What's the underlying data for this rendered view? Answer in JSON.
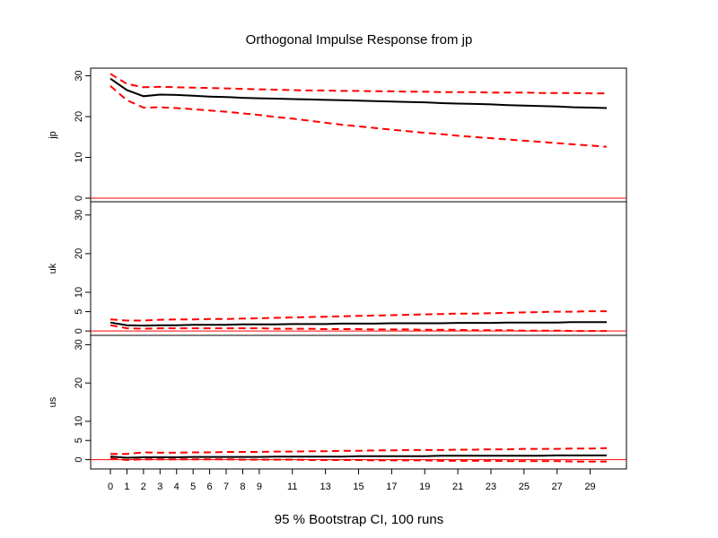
{
  "title": "Orthogonal Impulse Response from jp",
  "footer": "95 % Bootstrap CI,  100 runs",
  "chart_data": {
    "type": "line",
    "title": "Orthogonal Impulse Response from jp",
    "caption": "95 % Bootstrap CI,  100 runs",
    "x": [
      0,
      1,
      2,
      3,
      4,
      5,
      6,
      7,
      8,
      9,
      10,
      11,
      12,
      13,
      14,
      15,
      16,
      17,
      18,
      19,
      20,
      21,
      22,
      23,
      24,
      25,
      26,
      27,
      28,
      29,
      30
    ],
    "xticks": [
      0,
      1,
      2,
      3,
      4,
      5,
      6,
      7,
      8,
      9,
      11,
      13,
      15,
      17,
      19,
      21,
      23,
      25,
      27,
      29
    ],
    "xtick_labels": [
      "0",
      "1",
      "2",
      "3",
      "4",
      "5",
      "6",
      "7",
      "8",
      "9",
      "11",
      "13",
      "15",
      "17",
      "19",
      "21",
      "23",
      "25",
      "27",
      "29"
    ],
    "xlim": [
      0,
      30
    ],
    "colors": {
      "irf": "#000000",
      "ci": "#ff0000",
      "zero_line": "#ff0000"
    },
    "panels": [
      {
        "name": "jp",
        "ylim": [
          0,
          31
        ],
        "yticks": [
          0,
          10,
          20,
          30
        ],
        "ytick_labels": [
          "0",
          "10",
          "20",
          "30"
        ],
        "series": [
          {
            "role": "irf",
            "values": [
              29.3,
              26.5,
              25.0,
              25.4,
              25.3,
              25.1,
              24.9,
              24.8,
              24.6,
              24.5,
              24.4,
              24.3,
              24.2,
              24.1,
              24.0,
              23.9,
              23.8,
              23.7,
              23.6,
              23.5,
              23.3,
              23.2,
              23.1,
              23.0,
              22.8,
              22.7,
              22.6,
              22.5,
              22.3,
              22.2,
              22.1
            ]
          },
          {
            "role": "upper",
            "values": [
              30.5,
              28.0,
              27.2,
              27.3,
              27.2,
              27.1,
              27.0,
              26.9,
              26.8,
              26.7,
              26.6,
              26.5,
              26.4,
              26.4,
              26.3,
              26.3,
              26.2,
              26.2,
              26.1,
              26.1,
              26.0,
              26.0,
              26.0,
              25.9,
              25.9,
              25.9,
              25.8,
              25.8,
              25.8,
              25.7,
              25.7
            ]
          },
          {
            "role": "lower",
            "values": [
              27.5,
              24.0,
              22.2,
              22.3,
              22.1,
              21.8,
              21.5,
              21.2,
              20.8,
              20.4,
              19.9,
              19.5,
              19.0,
              18.5,
              18.0,
              17.6,
              17.2,
              16.8,
              16.4,
              16.0,
              15.7,
              15.3,
              15.0,
              14.7,
              14.4,
              14.1,
              13.8,
              13.5,
              13.2,
              12.9,
              12.6
            ]
          }
        ]
      },
      {
        "name": "uk",
        "ylim": [
          -0.2,
          32.5
        ],
        "yticks": [
          0,
          5,
          10,
          20,
          30
        ],
        "ytick_labels": [
          "0",
          "5",
          "10",
          "20",
          "30"
        ],
        "series": [
          {
            "role": "irf",
            "values": [
              2.2,
              1.5,
              1.4,
              1.5,
              1.5,
              1.6,
              1.6,
              1.6,
              1.7,
              1.7,
              1.7,
              1.8,
              1.8,
              1.8,
              1.9,
              1.9,
              1.9,
              2.0,
              2.0,
              2.0,
              2.0,
              2.1,
              2.1,
              2.1,
              2.2,
              2.2,
              2.2,
              2.2,
              2.3,
              2.3,
              2.3
            ]
          },
          {
            "role": "upper",
            "values": [
              3.0,
              2.7,
              2.7,
              2.9,
              3.0,
              3.0,
              3.1,
              3.1,
              3.2,
              3.3,
              3.4,
              3.5,
              3.6,
              3.7,
              3.8,
              3.9,
              4.0,
              4.1,
              4.2,
              4.3,
              4.4,
              4.5,
              4.5,
              4.6,
              4.7,
              4.8,
              4.9,
              5.0,
              5.0,
              5.1,
              5.1
            ]
          },
          {
            "role": "lower",
            "values": [
              1.5,
              0.7,
              0.6,
              0.7,
              0.7,
              0.7,
              0.7,
              0.7,
              0.7,
              0.7,
              0.6,
              0.6,
              0.6,
              0.5,
              0.5,
              0.5,
              0.4,
              0.4,
              0.4,
              0.3,
              0.3,
              0.3,
              0.2,
              0.2,
              0.2,
              0.1,
              0.1,
              0.1,
              0.0,
              0.0,
              0.0
            ]
          }
        ]
      },
      {
        "name": "us",
        "ylim": [
          -1.5,
          31.5
        ],
        "yticks": [
          0,
          5,
          10,
          20,
          30
        ],
        "ytick_labels": [
          "0",
          "5",
          "10",
          "20",
          "30"
        ],
        "series": [
          {
            "role": "irf",
            "values": [
              0.8,
              0.5,
              0.6,
              0.6,
              0.6,
              0.7,
              0.7,
              0.7,
              0.7,
              0.7,
              0.8,
              0.8,
              0.8,
              0.8,
              0.8,
              0.9,
              0.9,
              0.9,
              0.9,
              0.9,
              1.0,
              1.0,
              1.0,
              1.0,
              1.0,
              1.0,
              1.0,
              1.1,
              1.1,
              1.1,
              1.1
            ]
          },
          {
            "role": "upper",
            "values": [
              1.5,
              1.5,
              1.9,
              1.8,
              1.8,
              1.9,
              1.9,
              2.0,
              2.0,
              2.0,
              2.1,
              2.1,
              2.2,
              2.2,
              2.3,
              2.3,
              2.4,
              2.4,
              2.5,
              2.5,
              2.5,
              2.6,
              2.6,
              2.7,
              2.7,
              2.8,
              2.8,
              2.8,
              2.9,
              2.9,
              3.0
            ]
          },
          {
            "role": "lower",
            "values": [
              0.3,
              -0.1,
              0.1,
              0.1,
              0.1,
              0.1,
              0.1,
              0.1,
              0.0,
              0.0,
              0.0,
              0.0,
              -0.1,
              -0.1,
              -0.1,
              -0.1,
              -0.2,
              -0.2,
              -0.2,
              -0.2,
              -0.3,
              -0.3,
              -0.3,
              -0.3,
              -0.4,
              -0.4,
              -0.4,
              -0.4,
              -0.5,
              -0.5,
              -0.5
            ]
          }
        ]
      }
    ]
  }
}
